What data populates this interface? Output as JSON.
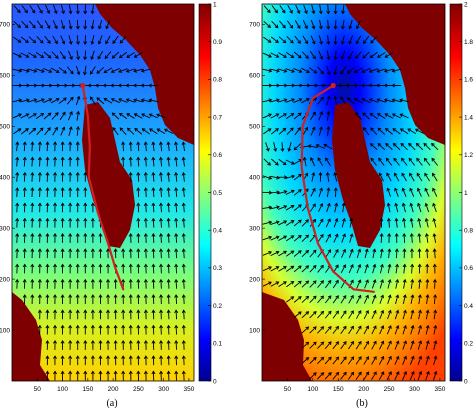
{
  "chart_data": [
    {
      "type": "heatmap",
      "panel_label": "(a)",
      "title": "",
      "xlabel": "",
      "ylabel": "",
      "xlim": [
        0,
        360
      ],
      "ylim": [
        0,
        740
      ],
      "x_ticks": [
        50,
        100,
        150,
        200,
        250,
        300,
        350
      ],
      "y_ticks": [
        100,
        200,
        300,
        400,
        500,
        600,
        700
      ],
      "colorbar": {
        "range": [
          0,
          1
        ],
        "ticks": [
          "0",
          "0.1",
          "0.2",
          "0.3",
          "0.4",
          "0.5",
          "0.6",
          "0.7",
          "0.8",
          "0.9",
          "1"
        ]
      },
      "overlay": "vector field (black arrows) converging to source point",
      "source_point": [
        140,
        580
      ],
      "trajectory": [
        [
          140,
          580
        ],
        [
          150,
          520
        ],
        [
          154,
          460
        ],
        [
          152,
          400
        ],
        [
          170,
          330
        ],
        [
          190,
          270
        ],
        [
          205,
          220
        ],
        [
          220,
          180
        ]
      ]
    },
    {
      "type": "heatmap",
      "panel_label": "(b)",
      "title": "",
      "xlabel": "",
      "ylabel": "",
      "xlim": [
        0,
        360
      ],
      "ylim": [
        0,
        740
      ],
      "x_ticks": [
        50,
        100,
        150,
        200,
        250,
        300,
        350
      ],
      "y_ticks": [
        100,
        200,
        300,
        400,
        500,
        600,
        700
      ],
      "colorbar": {
        "range": [
          0,
          2
        ],
        "ticks": [
          "0",
          "0.2",
          "0.4",
          "0.6",
          "0.8",
          "1",
          "1.2",
          "1.4",
          "1.6",
          "1.8",
          "2"
        ]
      },
      "overlay": "vector field (black arrows) converging to source point",
      "source_point": [
        140,
        580
      ],
      "trajectory": [
        [
          140,
          580
        ],
        [
          100,
          555
        ],
        [
          80,
          500
        ],
        [
          78,
          420
        ],
        [
          90,
          340
        ],
        [
          110,
          270
        ],
        [
          140,
          215
        ],
        [
          180,
          180
        ],
        [
          220,
          175
        ]
      ]
    }
  ],
  "colors": {
    "obstacle": "#7f0000",
    "arrows": "#000000",
    "trajectory": "#d22020"
  }
}
